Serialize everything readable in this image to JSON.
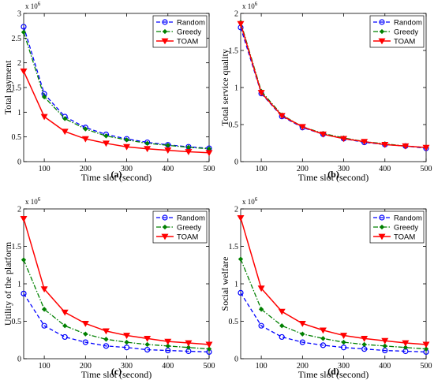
{
  "chart_data": [
    {
      "type": "line",
      "caption": "(a)",
      "xlabel": "Time slot (second)",
      "ylabel": "Total payment",
      "y_multiplier": "x 10",
      "y_exponent": "6",
      "xlim": [
        50,
        500
      ],
      "ylim": [
        0,
        3
      ],
      "xticks": [
        100,
        200,
        300,
        400,
        500
      ],
      "yticks": [
        0,
        0.5,
        1,
        1.5,
        2,
        2.5,
        3
      ],
      "ytick_labels": [
        "0",
        "0.5",
        "1",
        "1.5",
        "2",
        "2.5",
        "3"
      ],
      "legend_position": "top-right",
      "x": [
        50,
        100,
        150,
        200,
        250,
        300,
        350,
        400,
        450,
        500
      ],
      "series": [
        {
          "name": "Random",
          "color": "#0000ff",
          "marker": "circle",
          "dash": "dashed",
          "values": [
            2.73,
            1.37,
            0.91,
            0.69,
            0.55,
            0.46,
            0.39,
            0.34,
            0.3,
            0.27
          ]
        },
        {
          "name": "Greedy",
          "color": "#008000",
          "marker": "diamond",
          "dash": "dashdot",
          "values": [
            2.62,
            1.31,
            0.87,
            0.66,
            0.52,
            0.44,
            0.37,
            0.33,
            0.29,
            0.26
          ]
        },
        {
          "name": "TOAM",
          "color": "#ff0000",
          "marker": "triangle-down",
          "dash": "solid",
          "values": [
            1.83,
            0.91,
            0.61,
            0.46,
            0.37,
            0.3,
            0.26,
            0.23,
            0.2,
            0.18
          ]
        }
      ]
    },
    {
      "type": "line",
      "caption": "(b)",
      "xlabel": "Time slot (second)",
      "ylabel": "Total service quality",
      "y_multiplier": "x 10",
      "y_exponent": "6",
      "xlim": [
        50,
        500
      ],
      "ylim": [
        0,
        2
      ],
      "xticks": [
        100,
        200,
        300,
        400,
        500
      ],
      "yticks": [
        0,
        0.5,
        1,
        1.5,
        2
      ],
      "ytick_labels": [
        "0",
        "0.5",
        "1",
        "1.5",
        "2"
      ],
      "legend_position": "top-right",
      "x": [
        50,
        100,
        150,
        200,
        250,
        300,
        350,
        400,
        450,
        500
      ],
      "series": [
        {
          "name": "Random",
          "color": "#0000ff",
          "marker": "circle",
          "dash": "dashed",
          "values": [
            1.81,
            0.92,
            0.61,
            0.46,
            0.37,
            0.31,
            0.26,
            0.23,
            0.21,
            0.18
          ]
        },
        {
          "name": "Greedy",
          "color": "#008000",
          "marker": "diamond",
          "dash": "dashdot",
          "values": [
            1.88,
            0.95,
            0.63,
            0.47,
            0.38,
            0.32,
            0.27,
            0.24,
            0.21,
            0.19
          ]
        },
        {
          "name": "TOAM",
          "color": "#ff0000",
          "marker": "triangle-down",
          "dash": "solid",
          "values": [
            1.86,
            0.93,
            0.62,
            0.47,
            0.37,
            0.31,
            0.27,
            0.23,
            0.21,
            0.19
          ]
        }
      ]
    },
    {
      "type": "line",
      "caption": "(c)",
      "xlabel": "Time slot (second)",
      "ylabel": "Utility of the platform",
      "y_multiplier": "x 10",
      "y_exponent": "6",
      "xlim": [
        50,
        500
      ],
      "ylim": [
        0,
        2
      ],
      "xticks": [
        100,
        200,
        300,
        400,
        500
      ],
      "yticks": [
        0,
        0.5,
        1,
        1.5,
        2
      ],
      "ytick_labels": [
        "0",
        "0.5",
        "1",
        "1.5",
        "2"
      ],
      "legend_position": "top-right",
      "x": [
        50,
        100,
        150,
        200,
        250,
        300,
        350,
        400,
        450,
        500
      ],
      "series": [
        {
          "name": "Random",
          "color": "#0000ff",
          "marker": "circle",
          "dash": "dashed",
          "values": [
            0.87,
            0.44,
            0.29,
            0.22,
            0.17,
            0.15,
            0.12,
            0.11,
            0.1,
            0.09
          ]
        },
        {
          "name": "Greedy",
          "color": "#008000",
          "marker": "diamond",
          "dash": "dashdot",
          "values": [
            1.32,
            0.66,
            0.44,
            0.33,
            0.26,
            0.22,
            0.19,
            0.17,
            0.15,
            0.13
          ]
        },
        {
          "name": "TOAM",
          "color": "#ff0000",
          "marker": "triangle-down",
          "dash": "solid",
          "values": [
            1.87,
            0.93,
            0.62,
            0.47,
            0.37,
            0.31,
            0.27,
            0.23,
            0.21,
            0.19
          ]
        }
      ]
    },
    {
      "type": "line",
      "caption": "(d)",
      "xlabel": "Time slot (second)",
      "ylabel": "Social welfare",
      "y_multiplier": "x 10",
      "y_exponent": "6",
      "xlim": [
        50,
        500
      ],
      "ylim": [
        0,
        2
      ],
      "xticks": [
        100,
        200,
        300,
        400,
        500
      ],
      "yticks": [
        0,
        0.5,
        1,
        1.5,
        2
      ],
      "ytick_labels": [
        "0",
        "0.5",
        "1",
        "1.5",
        "2"
      ],
      "legend_position": "top-right",
      "x": [
        50,
        100,
        150,
        200,
        250,
        300,
        350,
        400,
        450,
        500
      ],
      "series": [
        {
          "name": "Random",
          "color": "#0000ff",
          "marker": "circle",
          "dash": "dashed",
          "values": [
            0.88,
            0.44,
            0.29,
            0.22,
            0.18,
            0.15,
            0.13,
            0.11,
            0.1,
            0.09
          ]
        },
        {
          "name": "Greedy",
          "color": "#008000",
          "marker": "diamond",
          "dash": "dashdot",
          "values": [
            1.33,
            0.66,
            0.44,
            0.33,
            0.27,
            0.22,
            0.19,
            0.17,
            0.15,
            0.13
          ]
        },
        {
          "name": "TOAM",
          "color": "#ff0000",
          "marker": "triangle-down",
          "dash": "solid",
          "values": [
            1.88,
            0.94,
            0.63,
            0.47,
            0.38,
            0.31,
            0.27,
            0.24,
            0.21,
            0.19
          ]
        }
      ]
    }
  ]
}
